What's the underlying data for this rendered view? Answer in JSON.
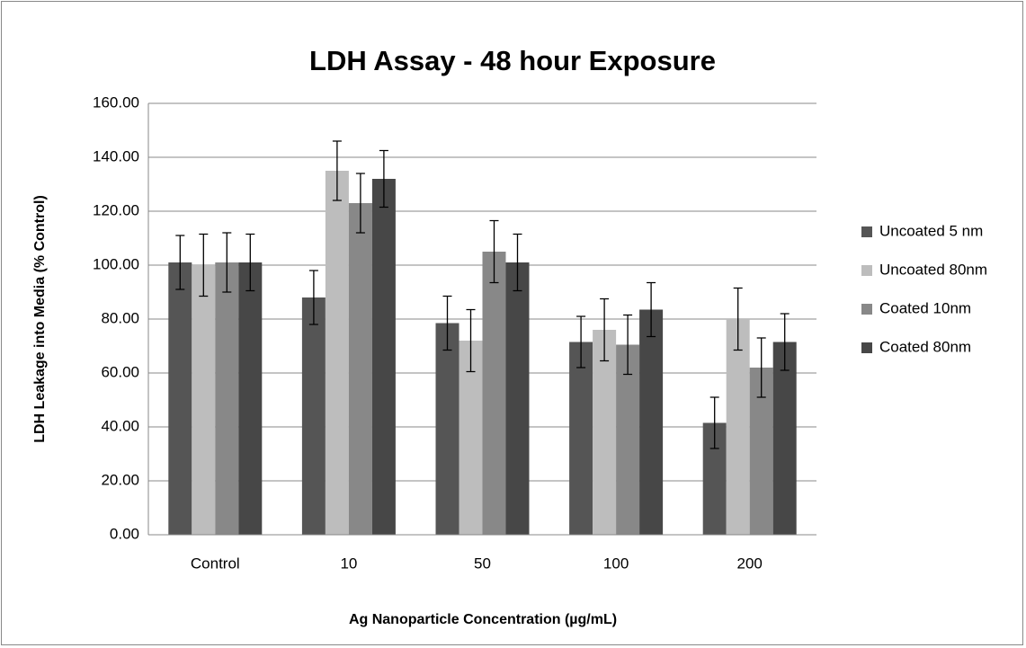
{
  "chart_data": {
    "type": "bar",
    "title": "LDH Assay - 48 hour Exposure",
    "x_label": "Ag Nanoparticle  Concentration (µg/mL)",
    "y_label": "LDH Leakage into Media (% Control)",
    "categories": [
      "Control",
      "10",
      "50",
      "100",
      "200"
    ],
    "series": [
      {
        "name": "Uncoated 5 nm",
        "color": "#555555",
        "values": [
          101,
          88,
          78.5,
          71.5,
          41.5
        ],
        "errors": [
          10,
          10,
          10,
          9.5,
          9.5
        ]
      },
      {
        "name": "Uncoated 80nm",
        "color": "#bdbdbd",
        "values": [
          100,
          135,
          72,
          76,
          80
        ],
        "errors": [
          11.5,
          11,
          11.5,
          11.5,
          11.5
        ]
      },
      {
        "name": "Coated 10nm",
        "color": "#888888",
        "values": [
          101,
          123,
          105,
          70.5,
          62
        ],
        "errors": [
          11,
          11,
          11.5,
          11,
          11
        ]
      },
      {
        "name": "Coated 80nm",
        "color": "#474747",
        "values": [
          101,
          132,
          101,
          83.5,
          71.5
        ],
        "errors": [
          10.5,
          10.5,
          10.5,
          10,
          10.5
        ]
      }
    ],
    "ylim": [
      0,
      160
    ],
    "yticks": [
      {
        "value": 0,
        "label": "0.00"
      },
      {
        "value": 20,
        "label": "20.00"
      },
      {
        "value": 40,
        "label": "40.00"
      },
      {
        "value": 60,
        "label": "60.00"
      },
      {
        "value": 80,
        "label": "80.00"
      },
      {
        "value": 100,
        "label": "100.00"
      },
      {
        "value": 120,
        "label": "120.00"
      },
      {
        "value": 140,
        "label": "140.00"
      },
      {
        "value": 160,
        "label": "160.00"
      }
    ],
    "grid": true,
    "legend": "right"
  }
}
